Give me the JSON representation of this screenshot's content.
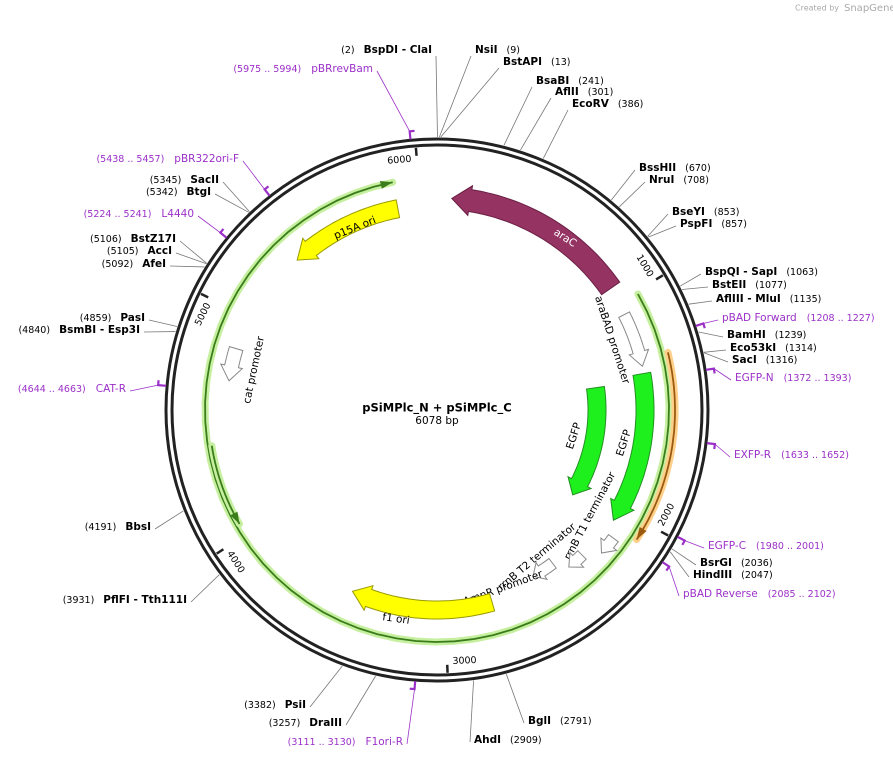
{
  "header": {
    "created_by": "Created by",
    "brand": "SnapGene"
  },
  "map": {
    "name": "pSiMPlc_N + pSiMPlc_C",
    "length": "6078 bp",
    "ticks": [
      "1000",
      "2000",
      "3000",
      "4000",
      "5000",
      "6000"
    ],
    "sites": [
      {
        "name": "BspDI  - ClaI",
        "position": "(2)"
      },
      {
        "name": "NsiI",
        "position": "(9)"
      },
      {
        "name": "BstAPI",
        "position": "(13)"
      },
      {
        "name": "BsaBI",
        "position": "(241)"
      },
      {
        "name": "AflII",
        "position": "(301)"
      },
      {
        "name": "EcoRV",
        "position": "(386)"
      },
      {
        "name": "BssHII",
        "position": "(670)"
      },
      {
        "name": "NruI",
        "position": "(708)"
      },
      {
        "name": "BseYI",
        "position": "(853)"
      },
      {
        "name": "PspFI",
        "position": "(857)"
      },
      {
        "name": "BspQI  - SapI",
        "position": "(1063)"
      },
      {
        "name": "BstEII",
        "position": "(1077)"
      },
      {
        "name": "AflIII  - MluI",
        "position": "(1135)"
      },
      {
        "name": "BamHI",
        "position": "(1239)"
      },
      {
        "name": "Eco53kI",
        "position": "(1314)"
      },
      {
        "name": "SacI",
        "position": "(1316)"
      },
      {
        "name": "BsrGI",
        "position": "(2036)"
      },
      {
        "name": "HindIII",
        "position": "(2047)"
      },
      {
        "name": "BglI",
        "position": "(2791)"
      },
      {
        "name": "AhdI",
        "position": "(2909)"
      },
      {
        "name": "DraIII",
        "position": "(3257)"
      },
      {
        "name": "PsiI",
        "position": "(3382)"
      },
      {
        "name": "PflFI  - Tth111I",
        "position": "(3931)"
      },
      {
        "name": "BbsI",
        "position": "(4191)"
      },
      {
        "name": "BsmBI  - Esp3I",
        "position": "(4840)"
      },
      {
        "name": "PasI",
        "position": "(4859)"
      },
      {
        "name": "AfeI",
        "position": "(5092)"
      },
      {
        "name": "AccI",
        "position": "(5105)"
      },
      {
        "name": "BstZ17I",
        "position": "(5106)"
      },
      {
        "name": "BtgI",
        "position": "(5342)"
      },
      {
        "name": "SacII",
        "position": "(5345)"
      }
    ],
    "primers": [
      {
        "name": "pBRrevBam",
        "range": "(5975 .. 5994)"
      },
      {
        "name": "pBR322ori-F",
        "range": "(5438 .. 5457)"
      },
      {
        "name": "L4440",
        "range": "(5224 .. 5241)"
      },
      {
        "name": "CAT-R",
        "range": "(4644 .. 4663)"
      },
      {
        "name": "pBAD Forward",
        "range": "(1208 .. 1227)"
      },
      {
        "name": "EGFP-N",
        "range": "(1372 .. 1393)"
      },
      {
        "name": "EXFP-R",
        "range": "(1633 .. 1652)"
      },
      {
        "name": "EGFP-C",
        "range": "(1980 .. 2001)"
      },
      {
        "name": "pBAD Reverse",
        "range": "(2085 .. 2102)"
      },
      {
        "name": "F1ori-R",
        "range": "(3111 .. 3130)"
      }
    ],
    "features": [
      "araC",
      "araBAD promoter",
      "EGFP",
      "EGFP",
      "rrnB T1 terminator",
      "rrnB T2 terminator",
      "AmpR promoter",
      "f1 ori",
      "cat promoter",
      "p15A ori"
    ]
  }
}
